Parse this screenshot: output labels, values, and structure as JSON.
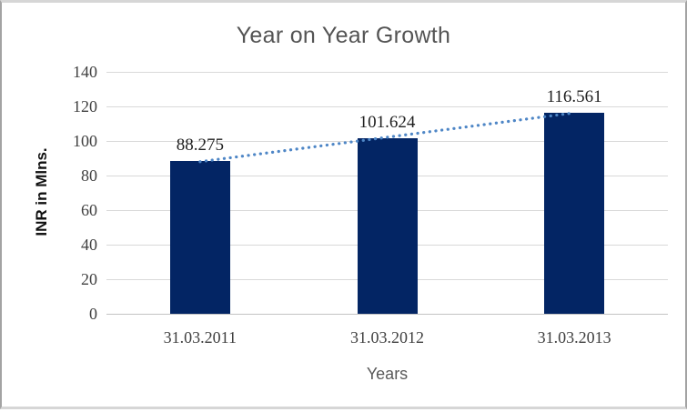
{
  "chart_data": {
    "type": "bar",
    "title": "Year on Year Growth",
    "xlabel": "Years",
    "ylabel": "INR in Mlns.",
    "categories": [
      "31.03.2011",
      "31.03.2012",
      "31.03.2013"
    ],
    "values": [
      88.275,
      101.624,
      116.561
    ],
    "data_labels": [
      "88.275",
      "101.624",
      "116.561"
    ],
    "ylim": [
      0,
      140
    ],
    "yticks": [
      0,
      20,
      40,
      60,
      80,
      100,
      120,
      140
    ],
    "grid": true,
    "legend": "none",
    "bar_color": "#032564",
    "trendline": {
      "type": "linear",
      "style": "dotted",
      "color": "#4e86c6"
    }
  }
}
